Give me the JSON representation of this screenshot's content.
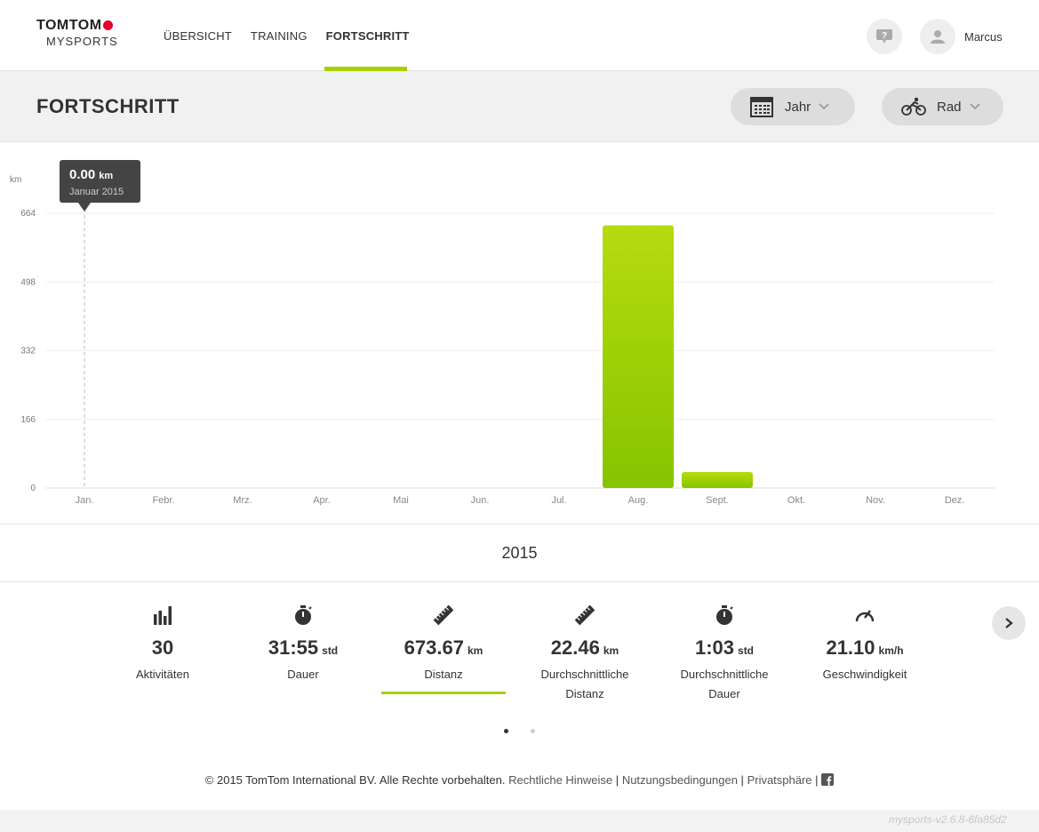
{
  "brand": {
    "line1": "TOMTOM",
    "line2": "MYSPORTS"
  },
  "nav": {
    "items": [
      {
        "label": "ÜBERSICHT",
        "active": false
      },
      {
        "label": "TRAINING",
        "active": false
      },
      {
        "label": "FORTSCHRITT",
        "active": true
      }
    ]
  },
  "header": {
    "help_icon": "chat-question-icon",
    "avatar_icon": "user-icon",
    "username": "Marcus"
  },
  "page": {
    "title": "FORTSCHRITT"
  },
  "filters": {
    "period": {
      "label": "Jahr",
      "icon": "calendar-icon"
    },
    "sport": {
      "label": "Rad",
      "icon": "cyclist-icon"
    }
  },
  "tooltip": {
    "value": "0.00",
    "unit": "km",
    "date": "Januar 2015"
  },
  "chart_data": {
    "type": "bar",
    "ylabel": "km",
    "ylim": [
      0,
      664
    ],
    "yticks": [
      0,
      166,
      332,
      498,
      664
    ],
    "categories": [
      "Jan.",
      "Febr.",
      "Mrz.",
      "Apr.",
      "Mai",
      "Jun.",
      "Jul.",
      "Aug.",
      "Sept.",
      "Okt.",
      "Nov.",
      "Dez."
    ],
    "values": [
      0,
      0,
      0,
      0,
      0,
      0,
      0,
      635,
      38.67,
      0,
      0,
      0
    ],
    "grid": true,
    "bar_color": "#a6d100",
    "year": "2015"
  },
  "stats": [
    {
      "icon": "bar-chart-icon",
      "value": "30",
      "unit": "",
      "label": "Aktivitäten"
    },
    {
      "icon": "stopwatch-icon",
      "value": "31:55",
      "unit": "std",
      "label": "Dauer"
    },
    {
      "icon": "ruler-icon",
      "value": "673.67",
      "unit": "km",
      "label": "Distanz"
    },
    {
      "icon": "ruler-icon",
      "value": "22.46",
      "unit": "km",
      "label": "Durchschnittliche Distanz"
    },
    {
      "icon": "stopwatch-icon",
      "value": "1:03",
      "unit": "std",
      "label": "Durchschnittliche Dauer"
    },
    {
      "icon": "speedometer-icon",
      "value": "21.10",
      "unit": "km/h",
      "label": "Geschwindigkeit"
    }
  ],
  "footer": {
    "copyright": "© 2015 TomTom International BV. Alle Rechte vorbehalten.",
    "legal": "Rechtliche Hinweise",
    "terms": "Nutzungsbedingungen",
    "privacy": "Privatsphäre",
    "sep": "|"
  },
  "version": "mysports-v2.6.8-6fa85d2"
}
